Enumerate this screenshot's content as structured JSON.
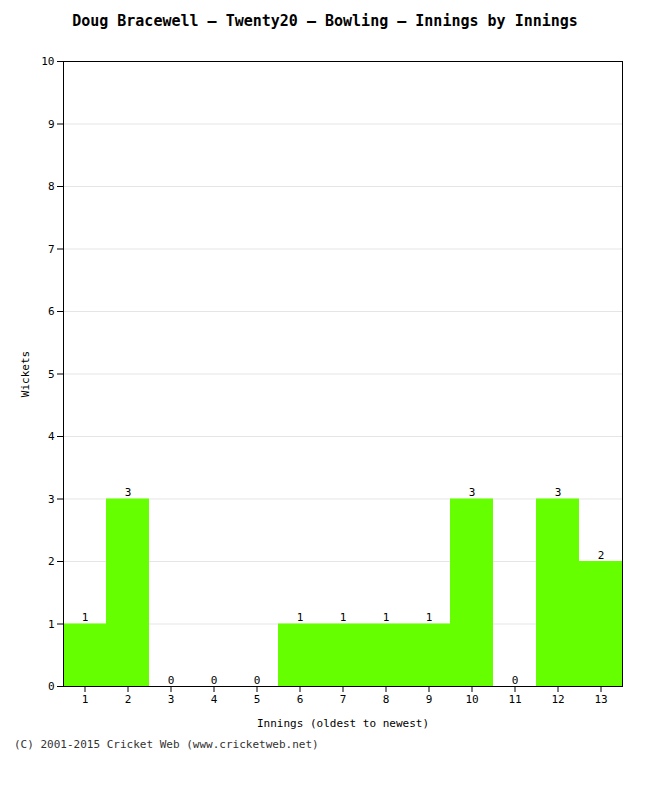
{
  "chart_data": {
    "type": "bar",
    "title": "Doug Bracewell – Twenty20 – Bowling – Innings by Innings",
    "xlabel": "Innings (oldest to newest)",
    "ylabel": "Wickets",
    "categories": [
      1,
      2,
      3,
      4,
      5,
      6,
      7,
      8,
      9,
      10,
      11,
      12,
      13
    ],
    "values": [
      1,
      3,
      0,
      0,
      0,
      1,
      1,
      1,
      1,
      3,
      0,
      3,
      2
    ],
    "color": "#66ff00",
    "ylim": [
      0,
      10
    ],
    "yticks": [
      0,
      1,
      2,
      3,
      4,
      5,
      6,
      7,
      8,
      9,
      10
    ],
    "grid": true,
    "data_labels": true,
    "footer": "(C) 2001-2015 Cricket Web (www.cricketweb.net)"
  }
}
